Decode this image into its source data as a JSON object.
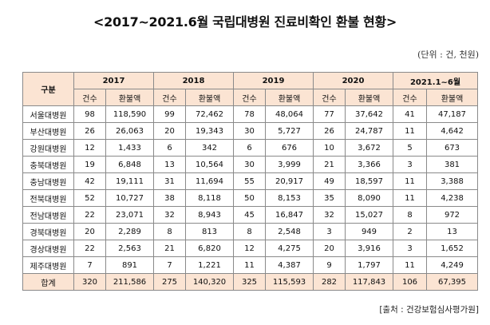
{
  "title": "<2017~2021.6월 국립대병원 진료비확인 환불 현황>",
  "unit_note": "(단위 : 건, 천원)",
  "table": {
    "row_header": "구분",
    "years": [
      "2017",
      "2018",
      "2019",
      "2020",
      "2021.1~6월"
    ],
    "sub_headers": [
      "건수",
      "환불액"
    ],
    "rows": [
      {
        "name": "서울대병원",
        "values": [
          "98",
          "118,590",
          "99",
          "72,462",
          "78",
          "48,064",
          "77",
          "37,642",
          "41",
          "47,187"
        ]
      },
      {
        "name": "부산대병원",
        "values": [
          "26",
          "26,063",
          "20",
          "19,343",
          "30",
          "5,727",
          "26",
          "24,787",
          "11",
          "4,642"
        ]
      },
      {
        "name": "강원대병원",
        "values": [
          "12",
          "1,433",
          "6",
          "342",
          "6",
          "676",
          "10",
          "3,672",
          "5",
          "673"
        ]
      },
      {
        "name": "충북대병원",
        "values": [
          "19",
          "6,848",
          "13",
          "10,564",
          "30",
          "3,999",
          "21",
          "3,366",
          "3",
          "381"
        ]
      },
      {
        "name": "충남대병원",
        "values": [
          "42",
          "19,111",
          "31",
          "11,694",
          "55",
          "20,917",
          "49",
          "18,597",
          "11",
          "3,388"
        ]
      },
      {
        "name": "전북대병원",
        "values": [
          "52",
          "10,727",
          "38",
          "8,118",
          "50",
          "8,153",
          "35",
          "8,090",
          "11",
          "4,238"
        ]
      },
      {
        "name": "전남대병원",
        "values": [
          "22",
          "23,071",
          "32",
          "8,943",
          "45",
          "16,847",
          "32",
          "15,027",
          "8",
          "972"
        ]
      },
      {
        "name": "경북대병원",
        "values": [
          "20",
          "2,289",
          "8",
          "813",
          "8",
          "2,548",
          "3",
          "949",
          "2",
          "13"
        ]
      },
      {
        "name": "경상대병원",
        "values": [
          "22",
          "2,563",
          "21",
          "6,820",
          "12",
          "4,275",
          "20",
          "3,916",
          "3",
          "1,652"
        ]
      },
      {
        "name": "제주대병원",
        "values": [
          "7",
          "891",
          "7",
          "1,221",
          "11",
          "4,387",
          "9",
          "1,797",
          "11",
          "4,249"
        ]
      }
    ],
    "total": {
      "name": "합계",
      "values": [
        "320",
        "211,586",
        "275",
        "140,320",
        "325",
        "115,593",
        "282",
        "117,843",
        "106",
        "67,395"
      ]
    }
  },
  "source": "[출처 : 건강보험심사평가원]"
}
